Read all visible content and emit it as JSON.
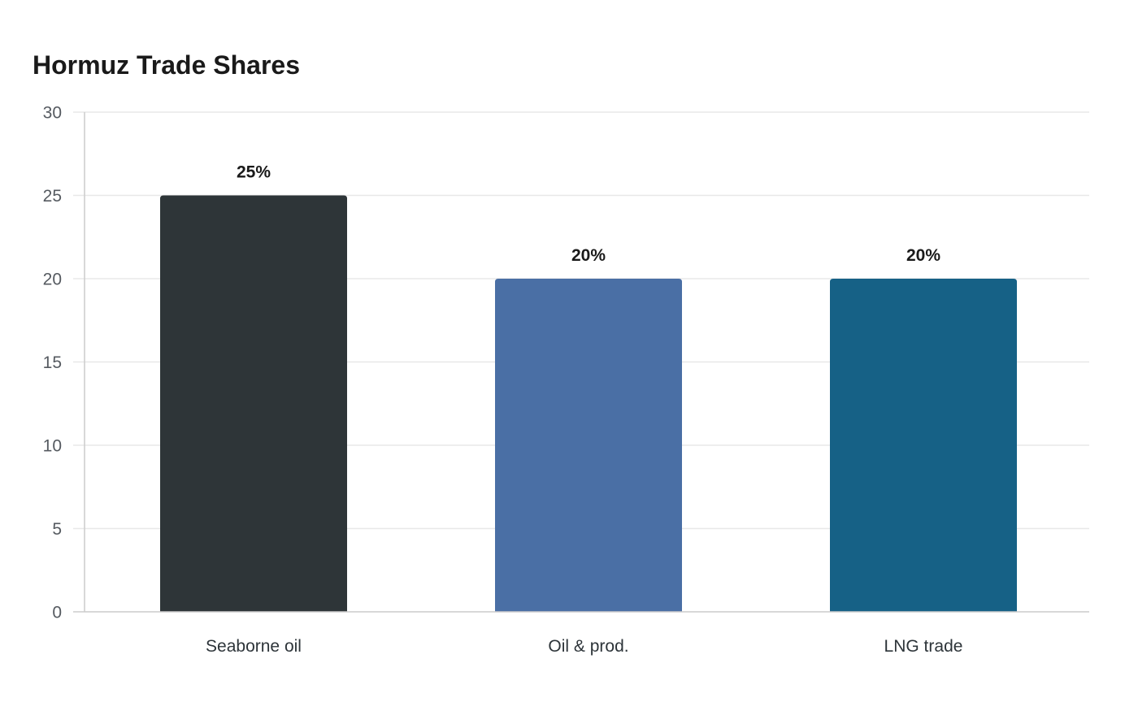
{
  "chart_data": {
    "type": "bar",
    "title": "Hormuz Trade Shares",
    "xlabel": "",
    "ylabel": "",
    "categories": [
      "Seaborne oil",
      "Oil & prod.",
      "LNG trade"
    ],
    "values": [
      25,
      20,
      20
    ],
    "data_labels": [
      "25%",
      "20%",
      "20%"
    ],
    "colors": [
      "#2e3538",
      "#4a6fa5",
      "#166186"
    ],
    "ylim": [
      0,
      30
    ],
    "yticks": [
      0,
      5,
      10,
      15,
      20,
      25,
      30
    ],
    "grid": true,
    "legend": "none"
  }
}
